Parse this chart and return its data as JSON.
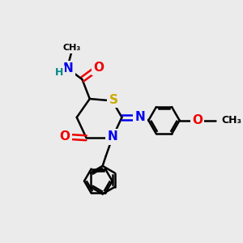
{
  "bg_color": "#ebebeb",
  "atom_colors": {
    "C": "#000000",
    "N": "#0000ee",
    "O": "#ee0000",
    "S": "#ccaa00",
    "H": "#008888"
  },
  "bond_color": "#000000",
  "bond_width": 1.8,
  "font_size": 10
}
